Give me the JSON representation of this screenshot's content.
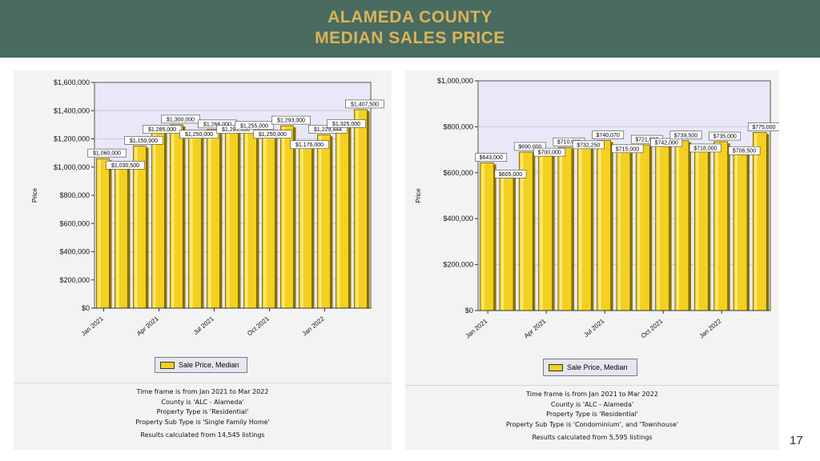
{
  "header": {
    "title_line1": "ALAMEDA COUNTY",
    "title_line2": "MEDIAN SALES PRICE",
    "bg_color": "#4a6b5f",
    "title_color": "#d9b45a"
  },
  "page_number": "17",
  "chart_data": [
    {
      "type": "bar",
      "ylabel": "Price",
      "ylim": [
        0,
        1600000
      ],
      "y_ticks": [
        0,
        200000,
        400000,
        600000,
        800000,
        1000000,
        1200000,
        1400000,
        1600000
      ],
      "y_tick_labels": [
        "$0",
        "$200,000",
        "$400,000",
        "$600,000",
        "$800,000",
        "$1,000,000",
        "$1,200,000",
        "$1,400,000",
        "$1,600,000"
      ],
      "x_tick_labels": [
        "Jan 2021",
        "Apr 2021",
        "Jul 2021",
        "Oct 2021",
        "Jan 2022"
      ],
      "categories": [
        "Jan 2021",
        "Feb 2021",
        "Mar 2021",
        "Apr 2021",
        "May 2021",
        "Jun 2021",
        "Jul 2021",
        "Aug 2021",
        "Sep 2021",
        "Oct 2021",
        "Nov 2021",
        "Dec 2021",
        "Jan 2022",
        "Feb 2022",
        "Mar 2022"
      ],
      "series": [
        {
          "name": "Sale Price, Median",
          "values": [
            1060000,
            1030500,
            1150000,
            1285000,
            1300000,
            1250000,
            1266000,
            1285000,
            1255000,
            1250000,
            1293000,
            1176000,
            1229444,
            1325000,
            1407500
          ],
          "labels": [
            "$1,060,000",
            "$1,030,500",
            "$1,150,000",
            "$1,285,000",
            "$1,300,000",
            "$1,250,000",
            "$1,266,000",
            "$1,285,000",
            "$1,255,000",
            "$1,250,000",
            "$1,293,000",
            "$1,176,000",
            "$1,229,444",
            "$1,325,000",
            "$1,407,500"
          ]
        }
      ],
      "legend": "Sale Price, Median",
      "grid": true,
      "bar_color": "#f4d020",
      "plot_bg": "#e8e8f8",
      "notes": [
        "Time frame is from Jan 2021 to Mar 2022",
        "County is 'ALC - Alameda'",
        "Property Type is 'Residential'",
        "Property Sub Type is 'Single Family Home'"
      ],
      "results": "Results calculated from 14,545 listings"
    },
    {
      "type": "bar",
      "ylabel": "Price",
      "ylim": [
        0,
        1000000
      ],
      "y_ticks": [
        0,
        200000,
        400000,
        600000,
        800000,
        1000000
      ],
      "y_tick_labels": [
        "$0",
        "$200,000",
        "$400,000",
        "$600,000",
        "$800,000",
        "$1,000,000"
      ],
      "x_tick_labels": [
        "Jan 2021",
        "Apr 2021",
        "Jul 2021",
        "Oct 2021",
        "Jan 2022"
      ],
      "categories": [
        "Jan 2021",
        "Feb 2021",
        "Mar 2021",
        "Apr 2021",
        "May 2021",
        "Jun 2021",
        "Jul 2021",
        "Aug 2021",
        "Sep 2021",
        "Oct 2021",
        "Nov 2021",
        "Dec 2021",
        "Jan 2022",
        "Feb 2022",
        "Mar 2022"
      ],
      "series": [
        {
          "name": "Sale Price, Median",
          "values": [
            643000,
            605000,
            690000,
            700000,
            710000,
            732250,
            740070,
            715000,
            721000,
            742000,
            739500,
            718000,
            735000,
            706500,
            775000
          ],
          "labels": [
            "$643,000",
            "$605,000",
            "$690,000",
            "$700,000",
            "$710,000",
            "$732,250",
            "$740,070",
            "$715,000",
            "$721,000",
            "$742,000",
            "$739,500",
            "$718,000",
            "$735,000",
            "$706,500",
            "$775,000"
          ]
        }
      ],
      "legend": "Sale Price, Median",
      "grid": true,
      "bar_color": "#f4d020",
      "plot_bg": "#e8e8f8",
      "notes": [
        "Time frame is from Jan 2021 to Mar 2022",
        "County is 'ALC - Alameda'",
        "Property Type is 'Residential'",
        "Property Sub Type is 'Condominium', and 'Townhouse'"
      ],
      "results": "Results calculated from 5,595 listings"
    }
  ]
}
